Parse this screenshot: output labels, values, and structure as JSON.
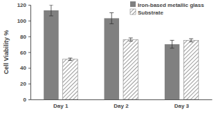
{
  "chart_data": {
    "type": "bar",
    "y_label": "Cell Viability %",
    "categories": [
      "Day 1",
      "Day 2",
      "Day 3"
    ],
    "series": [
      {
        "name": "Iron-based metallic glass",
        "color": "#808080",
        "values": [
          113,
          103,
          70
        ],
        "errors": [
          7,
          7,
          5
        ]
      },
      {
        "name": "Substrate",
        "color": "#808080",
        "values": [
          51,
          76,
          75
        ],
        "errors": [
          1.5,
          2,
          2
        ]
      }
    ],
    "ylim": [
      0,
      120
    ],
    "yticks": [
      0,
      20,
      40,
      60,
      80,
      100,
      120
    ],
    "grid": false,
    "legend": "upper right"
  }
}
